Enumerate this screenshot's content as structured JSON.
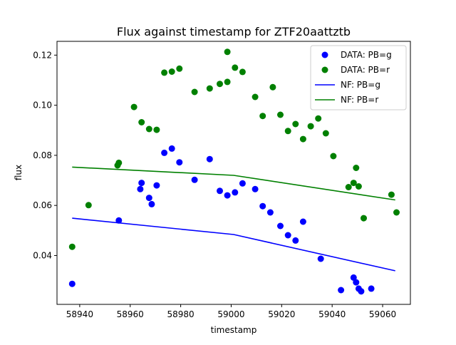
{
  "chart_data": {
    "type": "scatter",
    "title": "Flux against timestamp for ZTF20aattztb",
    "xlabel": "timestamp",
    "ylabel": "flux",
    "xlim": [
      58931,
      59071
    ],
    "ylim": [
      0.0205,
      0.1255
    ],
    "x_ticks": [
      58940,
      58960,
      58980,
      59000,
      59020,
      59040,
      59060
    ],
    "y_ticks": [
      0.04,
      0.06,
      0.08,
      0.1,
      0.12
    ],
    "x_tick_labels": [
      "58940",
      "58960",
      "58980",
      "59000",
      "59020",
      "59040",
      "59060"
    ],
    "y_tick_labels": [
      "0.04",
      "0.06",
      "0.08",
      "0.10",
      "0.12"
    ],
    "grid": false,
    "legend_position": "top-right",
    "series": [
      {
        "name": "DATA: PB=g",
        "kind": "points",
        "color": "#0000ff",
        "points": [
          [
            58937,
            0.0287
          ],
          [
            58955.5,
            0.054
          ],
          [
            58964,
            0.0665
          ],
          [
            58964.5,
            0.069
          ],
          [
            58967.5,
            0.063
          ],
          [
            58968.5,
            0.0605
          ],
          [
            58970.5,
            0.068
          ],
          [
            58973.5,
            0.081
          ],
          [
            58976.5,
            0.0827
          ],
          [
            58979.5,
            0.0772
          ],
          [
            58985.5,
            0.0702
          ],
          [
            58991.5,
            0.0785
          ],
          [
            58995.5,
            0.0658
          ],
          [
            58998.5,
            0.064
          ],
          [
            59001.5,
            0.0652
          ],
          [
            59004.5,
            0.0688
          ],
          [
            59009.5,
            0.0665
          ],
          [
            59012.5,
            0.0597
          ],
          [
            59015.5,
            0.0572
          ],
          [
            59019.5,
            0.0518
          ],
          [
            59022.5,
            0.0481
          ],
          [
            59025.5,
            0.046
          ],
          [
            59028.5,
            0.0535
          ],
          [
            59035.5,
            0.0387
          ],
          [
            59043.5,
            0.0262
          ],
          [
            59048.5,
            0.0312
          ],
          [
            59049.5,
            0.0293
          ],
          [
            59050.5,
            0.0268
          ],
          [
            59051.5,
            0.0257
          ],
          [
            59055.5,
            0.0268
          ]
        ]
      },
      {
        "name": "DATA: PB=r",
        "kind": "points",
        "color": "#008000",
        "points": [
          [
            58937,
            0.0435
          ],
          [
            58943.5,
            0.0601
          ],
          [
            58955,
            0.076
          ],
          [
            58955.5,
            0.077
          ],
          [
            58961.5,
            0.0993
          ],
          [
            58964.5,
            0.0932
          ],
          [
            58967.5,
            0.0905
          ],
          [
            58970.5,
            0.0902
          ],
          [
            58973.5,
            0.113
          ],
          [
            58976.5,
            0.1134
          ],
          [
            58979.5,
            0.1146
          ],
          [
            58985.5,
            0.1053
          ],
          [
            58991.5,
            0.1067
          ],
          [
            58995.5,
            0.1085
          ],
          [
            58998.5,
            0.1093
          ],
          [
            58998.5,
            0.1213
          ],
          [
            59001.5,
            0.115
          ],
          [
            59004.5,
            0.1133
          ],
          [
            59009.5,
            0.1033
          ],
          [
            59012.5,
            0.0957
          ],
          [
            59016.5,
            0.1072
          ],
          [
            59019.5,
            0.0962
          ],
          [
            59022.5,
            0.0897
          ],
          [
            59025.5,
            0.0925
          ],
          [
            59028.5,
            0.0865
          ],
          [
            59031.5,
            0.0916
          ],
          [
            59034.5,
            0.0947
          ],
          [
            59037.5,
            0.0888
          ],
          [
            59040.5,
            0.0797
          ],
          [
            59046.5,
            0.0673
          ],
          [
            59048.5,
            0.069
          ],
          [
            59049.5,
            0.075
          ],
          [
            59050.5,
            0.0676
          ],
          [
            59052.5,
            0.0549
          ],
          [
            59063.5,
            0.0643
          ],
          [
            59065.5,
            0.0572
          ]
        ]
      },
      {
        "name": "NF: PB=g",
        "kind": "line",
        "color": "#0000ff",
        "points": [
          [
            58937,
            0.0549
          ],
          [
            59001,
            0.0484
          ],
          [
            59065,
            0.0339
          ]
        ]
      },
      {
        "name": "NF: PB=r",
        "kind": "line",
        "color": "#008000",
        "points": [
          [
            58937,
            0.0753
          ],
          [
            59001,
            0.072
          ],
          [
            59065,
            0.0622
          ]
        ]
      }
    ]
  }
}
